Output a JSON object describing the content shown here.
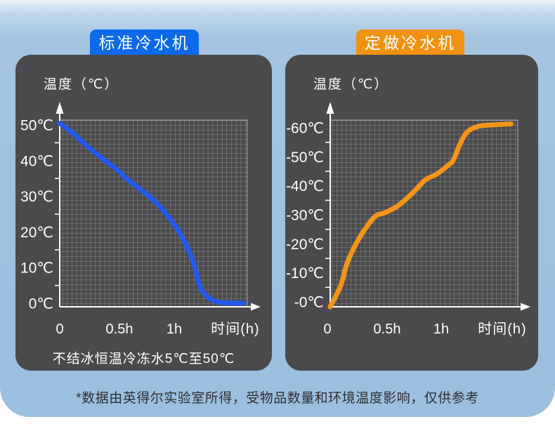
{
  "background_color": "#9cbfdf",
  "panel_color": "#4a4a4c",
  "footnote": "*数据由英得尔实验室所得，受物品数量和环境温度影响，仅供参考",
  "chart_data": [
    {
      "type": "line",
      "tab_label": "标准冷水机",
      "tab_color": "#0b69ea",
      "curve_color": "#2459ee",
      "y_axis_title": "温度（℃）",
      "x_axis_title": "时间(h)",
      "y_tick_labels": [
        "50℃",
        "40℃",
        "30℃",
        "20℃",
        "10℃",
        "0℃"
      ],
      "x_tick_labels": [
        "0",
        "0.5h",
        "1h"
      ],
      "caption": "不结冰恒温冷冻水5℃至50℃",
      "grid": true,
      "ylim": [
        0,
        50
      ],
      "xlim_hours": [
        0,
        1.6
      ],
      "x_hours": [
        0,
        0.12,
        0.24,
        0.38,
        0.5,
        0.56,
        0.68,
        0.79,
        0.9,
        0.97,
        1.07,
        1.15,
        1.21,
        1.27,
        1.35,
        1.45,
        1.59
      ],
      "temps_c": [
        50.5,
        47.5,
        44,
        40.3,
        37.3,
        35.4,
        32.3,
        29.5,
        25.8,
        23,
        17.7,
        11.8,
        4.7,
        2,
        0.5,
        0.1,
        0
      ]
    },
    {
      "type": "line",
      "tab_label": "定做冷水机",
      "tab_color": "#f29211",
      "curve_color": "#f49517",
      "y_axis_title": "温度（℃）",
      "x_axis_title": "时间(h)",
      "y_tick_labels": [
        "-60℃",
        "-50℃",
        "-40℃",
        "-30℃",
        "-20℃",
        "-10℃",
        "-0℃"
      ],
      "x_tick_labels": [
        "0",
        "0.5h",
        "1h"
      ],
      "caption": "",
      "grid": true,
      "ylim": [
        -62,
        0
      ],
      "xlim_hours": [
        0,
        1.6
      ],
      "x_hours": [
        0,
        0.09,
        0.15,
        0.25,
        0.38,
        0.47,
        0.59,
        0.72,
        0.82,
        0.92,
        1.02,
        1.06,
        1.12,
        1.18,
        1.28,
        1.42,
        1.56
      ],
      "temps_c": [
        0,
        -7,
        -15,
        -23,
        -30,
        -31.5,
        -34,
        -38.5,
        -42.5,
        -44.5,
        -47.5,
        -49,
        -54.5,
        -58.5,
        -60.5,
        -61,
        -61.3
      ]
    }
  ]
}
